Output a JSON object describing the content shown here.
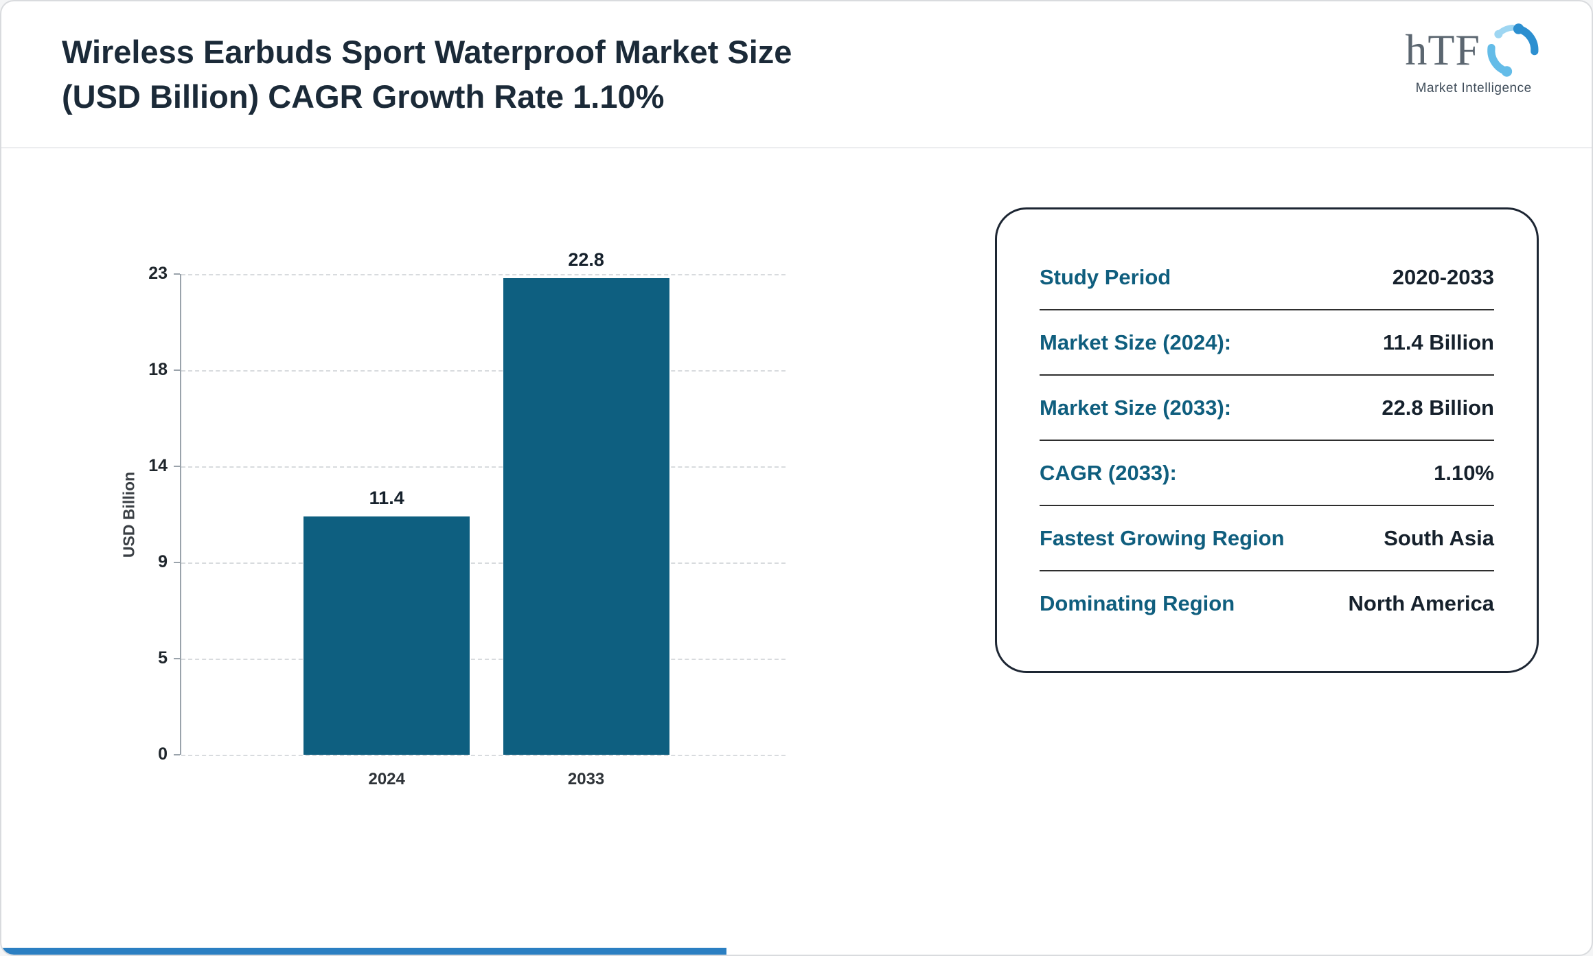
{
  "header": {
    "title_line1": "Wireless Earbuds Sport Waterproof Market Size",
    "title_line2": "(USD Billion) CAGR Growth Rate 1.10%",
    "logo": {
      "text": "hTF",
      "subtext": "Market Intelligence",
      "icon": "swirl-people-icon"
    }
  },
  "chart_data": {
    "type": "bar",
    "categories": [
      "2024",
      "2033"
    ],
    "values": [
      11.4,
      22.8
    ],
    "value_labels": [
      "11.4",
      "22.8"
    ],
    "title": "Wireless Earbuds Sport Waterproof Market Size (USD Billion) CAGR Growth Rate 1.10%",
    "xlabel": "",
    "ylabel": "USD Billion",
    "yticks": [
      0,
      5,
      9,
      14,
      18,
      23
    ],
    "ylim": [
      0,
      23
    ],
    "grid": "dashed-horizontal",
    "legend": "none",
    "bar_color": "#0e5f80"
  },
  "info_card": {
    "rows": [
      {
        "label": "Study Period",
        "value": "2020-2033"
      },
      {
        "label": "Market Size (2024):",
        "value": "11.4 Billion"
      },
      {
        "label": "Market Size (2033):",
        "value": "22.8 Billion"
      },
      {
        "label": "CAGR (2033):",
        "value": "1.10%"
      },
      {
        "label": "Fastest Growing Region",
        "value": "South Asia"
      },
      {
        "label": "Dominating Region",
        "value": "North America"
      }
    ]
  },
  "colors": {
    "bar": "#0e5f80",
    "label_teal": "#0f5e7e",
    "title_navy": "#1b2a38",
    "bottom_strip_blue": "#2b7fc2",
    "gridline_gray": "#d8dbde"
  }
}
